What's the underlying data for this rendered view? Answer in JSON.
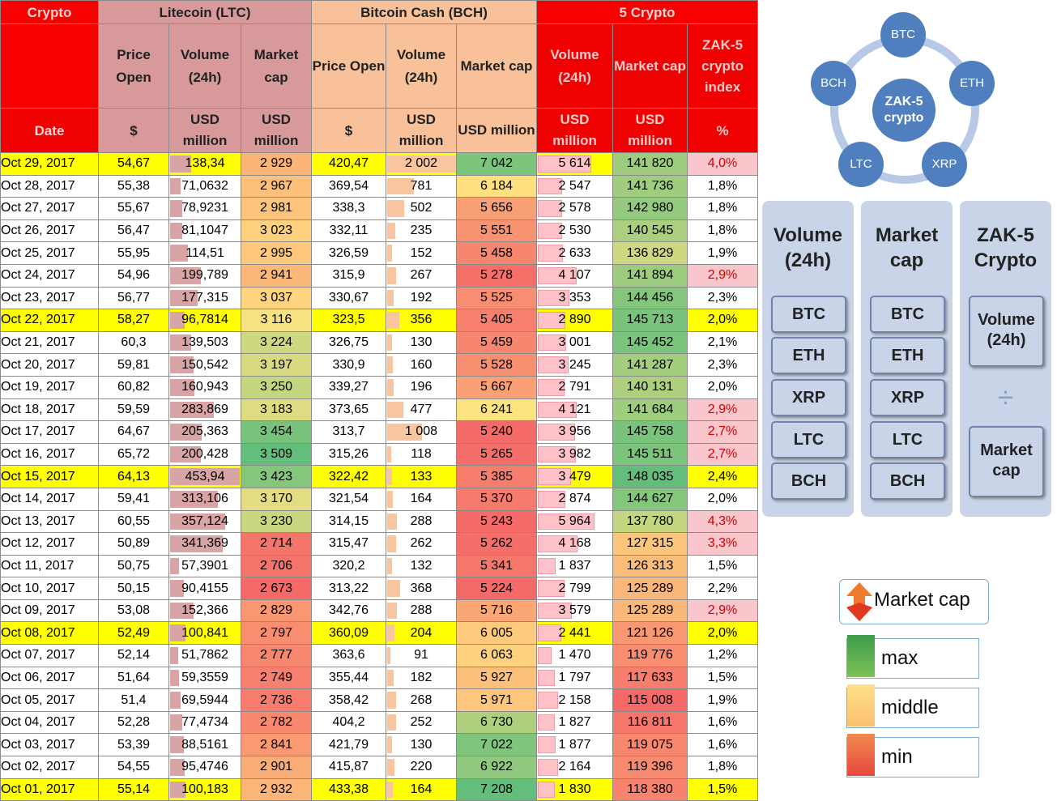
{
  "header": {
    "crypto_label": "Crypto",
    "date_label": "Date",
    "ltc_title": "Litecoin (LTC)",
    "bch_title": "Bitcoin Cash (BCH)",
    "five_title": "5 Crypto",
    "price_open": "Price Open",
    "volume_24h": "Volume (24h)",
    "market_cap_2": "Market cap",
    "market_cap_1": "Market cap",
    "zak_index": "ZAK-5 crypto index",
    "unit_dollar": "$",
    "unit_usd_million": "USD million",
    "unit_percent": "%"
  },
  "rows": [
    {
      "date": "Oct 29, 2017",
      "ltc_price": "54,67",
      "ltc_vol": "138,34",
      "ltc_cap": "2 929",
      "bch_price": "420,47",
      "bch_vol": "2 002",
      "bch_cap": "7 042",
      "c5_vol": "5 614",
      "c5_cap": "141 820",
      "zak": "4,0%",
      "hl": true
    },
    {
      "date": "Oct 28, 2017",
      "ltc_price": "55,38",
      "ltc_vol": "71,0632",
      "ltc_cap": "2 967",
      "bch_price": "369,54",
      "bch_vol": "781",
      "bch_cap": "6 184",
      "c5_vol": "2 547",
      "c5_cap": "141 736",
      "zak": "1,8%",
      "hl": false
    },
    {
      "date": "Oct 27, 2017",
      "ltc_price": "55,67",
      "ltc_vol": "78,9231",
      "ltc_cap": "2 981",
      "bch_price": "338,3",
      "bch_vol": "502",
      "bch_cap": "5 656",
      "c5_vol": "2 578",
      "c5_cap": "142 980",
      "zak": "1,8%",
      "hl": false
    },
    {
      "date": "Oct 26, 2017",
      "ltc_price": "56,47",
      "ltc_vol": "81,1047",
      "ltc_cap": "3 023",
      "bch_price": "332,11",
      "bch_vol": "235",
      "bch_cap": "5 551",
      "c5_vol": "2 530",
      "c5_cap": "140 545",
      "zak": "1,8%",
      "hl": false
    },
    {
      "date": "Oct 25, 2017",
      "ltc_price": "55,95",
      "ltc_vol": "114,51",
      "ltc_cap": "2 995",
      "bch_price": "326,59",
      "bch_vol": "152",
      "bch_cap": "5 458",
      "c5_vol": "2 633",
      "c5_cap": "136 829",
      "zak": "1,9%",
      "hl": false
    },
    {
      "date": "Oct 24, 2017",
      "ltc_price": "54,96",
      "ltc_vol": "199,789",
      "ltc_cap": "2 941",
      "bch_price": "315,9",
      "bch_vol": "267",
      "bch_cap": "5 278",
      "c5_vol": "4 107",
      "c5_cap": "141 894",
      "zak": "2,9%",
      "hl": false
    },
    {
      "date": "Oct 23, 2017",
      "ltc_price": "56,77",
      "ltc_vol": "177,315",
      "ltc_cap": "3 037",
      "bch_price": "330,67",
      "bch_vol": "192",
      "bch_cap": "5 525",
      "c5_vol": "3 353",
      "c5_cap": "144 456",
      "zak": "2,3%",
      "hl": false
    },
    {
      "date": "Oct 22, 2017",
      "ltc_price": "58,27",
      "ltc_vol": "96,7814",
      "ltc_cap": "3 116",
      "bch_price": "323,5",
      "bch_vol": "356",
      "bch_cap": "5 405",
      "c5_vol": "2 890",
      "c5_cap": "145 713",
      "zak": "2,0%",
      "hl": true
    },
    {
      "date": "Oct 21, 2017",
      "ltc_price": "60,3",
      "ltc_vol": "139,503",
      "ltc_cap": "3 224",
      "bch_price": "326,75",
      "bch_vol": "130",
      "bch_cap": "5 459",
      "c5_vol": "3 001",
      "c5_cap": "145 452",
      "zak": "2,1%",
      "hl": false
    },
    {
      "date": "Oct 20, 2017",
      "ltc_price": "59,81",
      "ltc_vol": "150,542",
      "ltc_cap": "3 197",
      "bch_price": "330,9",
      "bch_vol": "160",
      "bch_cap": "5 528",
      "c5_vol": "3 245",
      "c5_cap": "141 287",
      "zak": "2,3%",
      "hl": false
    },
    {
      "date": "Oct 19, 2017",
      "ltc_price": "60,82",
      "ltc_vol": "160,943",
      "ltc_cap": "3 250",
      "bch_price": "339,27",
      "bch_vol": "196",
      "bch_cap": "5 667",
      "c5_vol": "2 791",
      "c5_cap": "140 131",
      "zak": "2,0%",
      "hl": false
    },
    {
      "date": "Oct 18, 2017",
      "ltc_price": "59,59",
      "ltc_vol": "283,869",
      "ltc_cap": "3 183",
      "bch_price": "373,65",
      "bch_vol": "477",
      "bch_cap": "6 241",
      "c5_vol": "4 121",
      "c5_cap": "141 684",
      "zak": "2,9%",
      "hl": false
    },
    {
      "date": "Oct 17, 2017",
      "ltc_price": "64,67",
      "ltc_vol": "205,363",
      "ltc_cap": "3 454",
      "bch_price": "313,7",
      "bch_vol": "1 008",
      "bch_cap": "5 240",
      "c5_vol": "3 956",
      "c5_cap": "145 758",
      "zak": "2,7%",
      "hl": false
    },
    {
      "date": "Oct 16, 2017",
      "ltc_price": "65,72",
      "ltc_vol": "200,428",
      "ltc_cap": "3 509",
      "bch_price": "315,26",
      "bch_vol": "118",
      "bch_cap": "5 265",
      "c5_vol": "3 982",
      "c5_cap": "145 511",
      "zak": "2,7%",
      "hl": false
    },
    {
      "date": "Oct 15, 2017",
      "ltc_price": "64,13",
      "ltc_vol": "453,94",
      "ltc_cap": "3 423",
      "bch_price": "322,42",
      "bch_vol": "133",
      "bch_cap": "5 385",
      "c5_vol": "3 479",
      "c5_cap": "148 035",
      "zak": "2,4%",
      "hl": true
    },
    {
      "date": "Oct 14, 2017",
      "ltc_price": "59,41",
      "ltc_vol": "313,106",
      "ltc_cap": "3 170",
      "bch_price": "321,54",
      "bch_vol": "164",
      "bch_cap": "5 370",
      "c5_vol": "2 874",
      "c5_cap": "144 627",
      "zak": "2,0%",
      "hl": false
    },
    {
      "date": "Oct 13, 2017",
      "ltc_price": "60,55",
      "ltc_vol": "357,124",
      "ltc_cap": "3 230",
      "bch_price": "314,15",
      "bch_vol": "288",
      "bch_cap": "5 243",
      "c5_vol": "5 964",
      "c5_cap": "137 780",
      "zak": "4,3%",
      "hl": false
    },
    {
      "date": "Oct 12, 2017",
      "ltc_price": "50,89",
      "ltc_vol": "341,369",
      "ltc_cap": "2 714",
      "bch_price": "315,47",
      "bch_vol": "262",
      "bch_cap": "5 262",
      "c5_vol": "4 168",
      "c5_cap": "127 315",
      "zak": "3,3%",
      "hl": false
    },
    {
      "date": "Oct 11, 2017",
      "ltc_price": "50,75",
      "ltc_vol": "57,3901",
      "ltc_cap": "2 706",
      "bch_price": "320,2",
      "bch_vol": "132",
      "bch_cap": "5 341",
      "c5_vol": "1 837",
      "c5_cap": "126 313",
      "zak": "1,5%",
      "hl": false
    },
    {
      "date": "Oct 10, 2017",
      "ltc_price": "50,15",
      "ltc_vol": "90,4155",
      "ltc_cap": "2 673",
      "bch_price": "313,22",
      "bch_vol": "368",
      "bch_cap": "5 224",
      "c5_vol": "2 799",
      "c5_cap": "125 289",
      "zak": "2,2%",
      "hl": false
    },
    {
      "date": "Oct 09, 2017",
      "ltc_price": "53,08",
      "ltc_vol": "152,366",
      "ltc_cap": "2 829",
      "bch_price": "342,76",
      "bch_vol": "288",
      "bch_cap": "5 716",
      "c5_vol": "3 579",
      "c5_cap": "125 289",
      "zak": "2,9%",
      "hl": false
    },
    {
      "date": "Oct 08, 2017",
      "ltc_price": "52,49",
      "ltc_vol": "100,841",
      "ltc_cap": "2 797",
      "bch_price": "360,09",
      "bch_vol": "204",
      "bch_cap": "6 005",
      "c5_vol": "2 441",
      "c5_cap": "121 126",
      "zak": "2,0%",
      "hl": true
    },
    {
      "date": "Oct 07, 2017",
      "ltc_price": "52,14",
      "ltc_vol": "51,7862",
      "ltc_cap": "2 777",
      "bch_price": "363,6",
      "bch_vol": "91",
      "bch_cap": "6 063",
      "c5_vol": "1 470",
      "c5_cap": "119 776",
      "zak": "1,2%",
      "hl": false
    },
    {
      "date": "Oct 06, 2017",
      "ltc_price": "51,64",
      "ltc_vol": "59,3559",
      "ltc_cap": "2 749",
      "bch_price": "355,44",
      "bch_vol": "182",
      "bch_cap": "5 927",
      "c5_vol": "1 797",
      "c5_cap": "117 633",
      "zak": "1,5%",
      "hl": false
    },
    {
      "date": "Oct 05, 2017",
      "ltc_price": "51,4",
      "ltc_vol": "69,5944",
      "ltc_cap": "2 736",
      "bch_price": "358,42",
      "bch_vol": "268",
      "bch_cap": "5 971",
      "c5_vol": "2 158",
      "c5_cap": "115 008",
      "zak": "1,9%",
      "hl": false
    },
    {
      "date": "Oct 04, 2017",
      "ltc_price": "52,28",
      "ltc_vol": "77,4734",
      "ltc_cap": "2 782",
      "bch_price": "404,2",
      "bch_vol": "252",
      "bch_cap": "6 730",
      "c5_vol": "1 827",
      "c5_cap": "116 811",
      "zak": "1,6%",
      "hl": false
    },
    {
      "date": "Oct 03, 2017",
      "ltc_price": "53,39",
      "ltc_vol": "88,5161",
      "ltc_cap": "2 841",
      "bch_price": "421,79",
      "bch_vol": "130",
      "bch_cap": "7 022",
      "c5_vol": "1 877",
      "c5_cap": "119 075",
      "zak": "1,6%",
      "hl": false
    },
    {
      "date": "Oct 02, 2017",
      "ltc_price": "54,55",
      "ltc_vol": "95,4746",
      "ltc_cap": "2 901",
      "bch_price": "415,87",
      "bch_vol": "220",
      "bch_cap": "6 922",
      "c5_vol": "2 164",
      "c5_cap": "119 396",
      "zak": "1,8%",
      "hl": false
    },
    {
      "date": "Oct 01, 2017",
      "ltc_price": "55,14",
      "ltc_vol": "100,183",
      "ltc_cap": "2 932",
      "bch_price": "433,38",
      "bch_vol": "164",
      "bch_cap": "7 208",
      "c5_vol": "1 830",
      "c5_cap": "118 380",
      "zak": "1,5%",
      "hl": true
    }
  ],
  "diagram": {
    "center": "ZAK-5 crypto",
    "coins": [
      "BTC",
      "ETH",
      "XRP",
      "LTC",
      "BCH"
    ],
    "circle_color": "#4f7fbe"
  },
  "panels": {
    "volume_title": "Volume (24h)",
    "market_title": "Market cap",
    "zak_title": "ZAK-5 Crypto",
    "items": [
      "BTC",
      "ETH",
      "XRP",
      "LTC",
      "BCH"
    ],
    "numerator": "Volume (24h)",
    "divide_symbol": "÷",
    "denominator": "Market cap"
  },
  "legend": {
    "title": "Market cap",
    "max": "max",
    "middle": "middle",
    "min": "min",
    "colors": {
      "max": "#5db660",
      "middle": "#ffd97a",
      "min": "#ee5f55"
    }
  },
  "colors": {
    "header_red": "#f00000",
    "ltc_header": "#d8999b",
    "bch_header": "#f8c19a",
    "highlight_yellow": "#ffff00"
  }
}
